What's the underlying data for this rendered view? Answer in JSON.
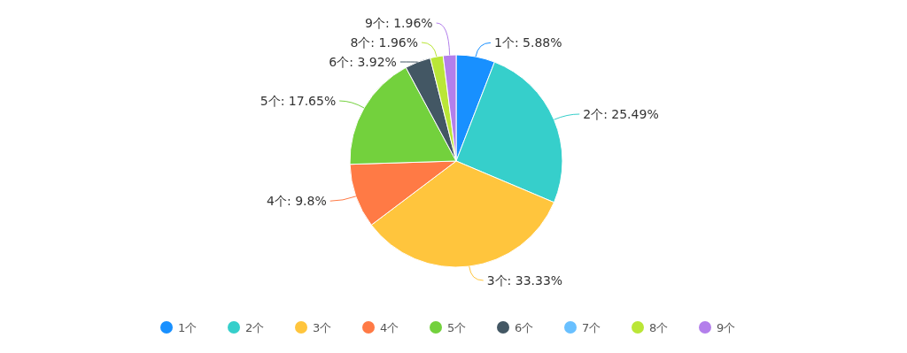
{
  "chart_data": {
    "type": "pie",
    "categories": [
      "1个",
      "2个",
      "3个",
      "4个",
      "5个",
      "6个",
      "7个",
      "8个",
      "9个"
    ],
    "values": [
      5.88,
      25.49,
      33.33,
      9.8,
      17.65,
      3.92,
      0,
      1.96,
      1.96
    ],
    "colors": [
      "#1890ff",
      "#36cfcb",
      "#ffc53d",
      "#ff7a45",
      "#73d13d",
      "#435764",
      "#69c0ff",
      "#bae637",
      "#b37feb"
    ],
    "value_labels": [
      "1个: 5.88%",
      "2个: 25.49%",
      "3个: 33.33%",
      "4个: 9.8%",
      "5个: 17.65%",
      "6个: 3.92%",
      null,
      "8个: 1.96%",
      "9个: 1.96%"
    ],
    "legend": "bottom"
  }
}
